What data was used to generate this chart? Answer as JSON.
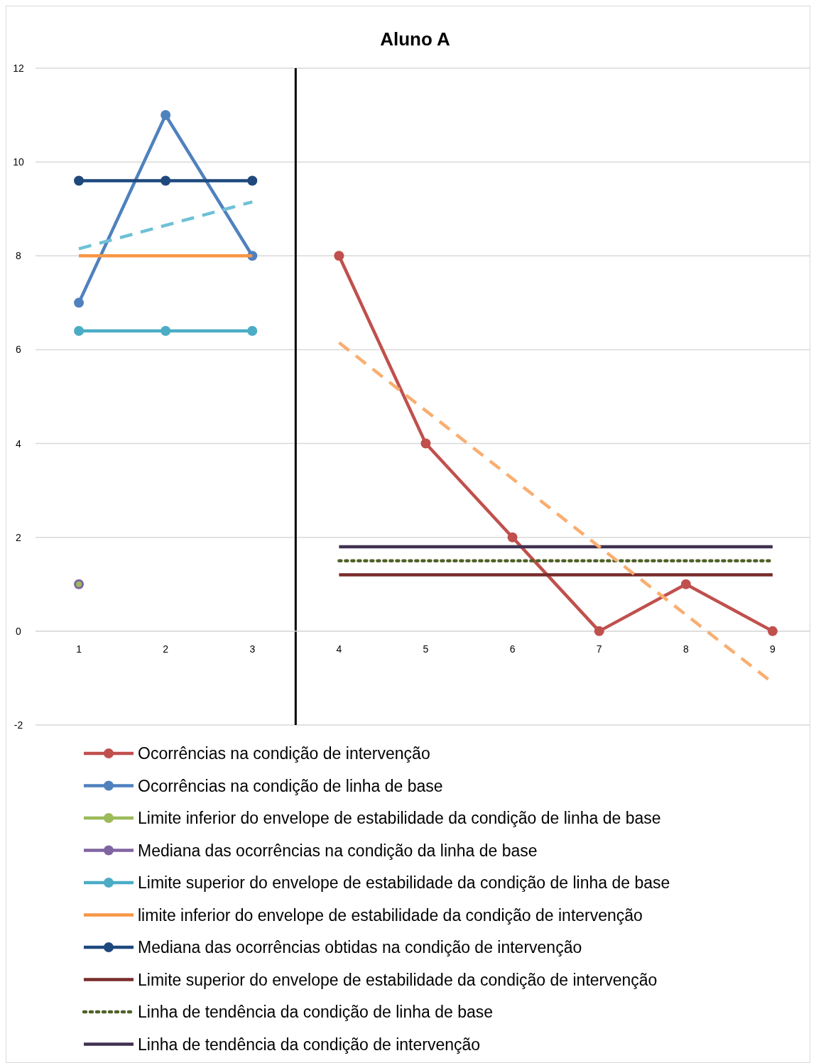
{
  "chart_data": {
    "type": "line",
    "title": "Aluno A",
    "xlim": [
      0.5,
      9.5
    ],
    "xticks": [
      1,
      2,
      3,
      4,
      5,
      6,
      7,
      8,
      9
    ],
    "ylim": [
      -2,
      12
    ],
    "yticks": [
      -2,
      0,
      2,
      4,
      6,
      8,
      10,
      12
    ],
    "grid": "y",
    "legend": "bottom",
    "series": [
      {
        "name": "Ocorrências na condição de intervenção",
        "color": "#c0504d",
        "x": [
          4,
          5,
          6,
          7,
          8,
          9
        ],
        "values": [
          8,
          4,
          2,
          0,
          1,
          0
        ],
        "marker": "circle",
        "line_style": "solid"
      },
      {
        "name": "Ocorrências na condição de linha de base",
        "color": "#4f81bd",
        "x": [
          1,
          2,
          3
        ],
        "values": [
          7,
          11,
          8
        ],
        "marker": "circle",
        "line_style": "solid"
      },
      {
        "name": "Limite inferior do envelope de estabilidade da condição de linha de base",
        "color": "#9bbb59",
        "x": [
          1
        ],
        "values": [
          1
        ],
        "marker": "circle",
        "line_style": "solid"
      },
      {
        "name": "Mediana das ocorrências na condição da linha de base",
        "color": "#8064a2",
        "x": [
          1
        ],
        "values": [
          1
        ],
        "marker": "circle",
        "line_style": "solid"
      },
      {
        "name": "Limite superior do envelope de estabilidade da condição de linha de base",
        "color": "#4bacc6",
        "x": [
          1,
          2,
          3
        ],
        "values": [
          6.4,
          6.4,
          6.4
        ],
        "marker": "circle",
        "line_style": "solid"
      },
      {
        "name": "limite inferior do envelope de estabilidade da condição de intervenção",
        "color": "#f79646",
        "x": [
          1,
          3
        ],
        "values": [
          8,
          8
        ],
        "marker": "none",
        "line_style": "solid"
      },
      {
        "name": "Mediana das ocorrências obtidas na condição de intervenção",
        "color": "#1f497d",
        "x": [
          1,
          2,
          3
        ],
        "values": [
          9.6,
          9.6,
          9.6
        ],
        "marker": "circle",
        "line_style": "solid"
      },
      {
        "name": "Limite superior do envelope de estabilidade da condição de intervenção",
        "color": "#772c2a",
        "x": [
          4,
          9
        ],
        "values": [
          1.2,
          1.2
        ],
        "marker": "none",
        "line_style": "solid"
      },
      {
        "name": "Linha de tendência da condição de linha de base",
        "color": "#4f6228",
        "x": [
          4,
          9
        ],
        "values": [
          1.5,
          1.5
        ],
        "marker": "none",
        "line_style": "dotted"
      },
      {
        "name": "Linha de tendência da condição de intervenção",
        "color": "#403152",
        "x": [
          4,
          9
        ],
        "values": [
          1.8,
          1.8
        ],
        "marker": "none",
        "line_style": "solid"
      },
      {
        "color": "#6fc1d6",
        "x": [
          1,
          3
        ],
        "values": [
          8.15,
          9.15
        ],
        "marker": "none",
        "line_style": "dashed"
      },
      {
        "color": "#f9ae70",
        "x": [
          4,
          9
        ],
        "values": [
          6.15,
          -1.1
        ],
        "marker": "none",
        "line_style": "dashed"
      }
    ],
    "ref_lines": [
      {
        "axis": "x",
        "value": 3.5,
        "color": "#000000"
      }
    ]
  }
}
